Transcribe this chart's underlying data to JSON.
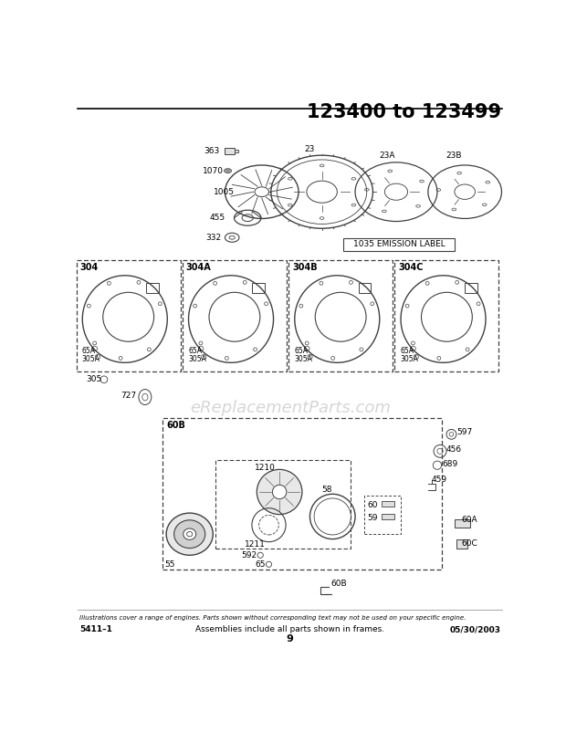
{
  "title": "123400 to 123499",
  "bg_color": "#ffffff",
  "footer_italic_text": "Illustrations cover a range of engines. Parts shown without corresponding text may not be used on your specific engine.",
  "footer_center_text": "Assemblies include all parts shown in frames.",
  "footer_left": "5411–1",
  "footer_right": "05/30/2003",
  "footer_page": "9",
  "watermark": "eReplacementParts.com",
  "emission_label": "1035 EMISSION LABEL",
  "blower_labels": [
    "304",
    "304A",
    "304B",
    "304C"
  ],
  "box304_sub": "305",
  "box304_sub2": "727"
}
